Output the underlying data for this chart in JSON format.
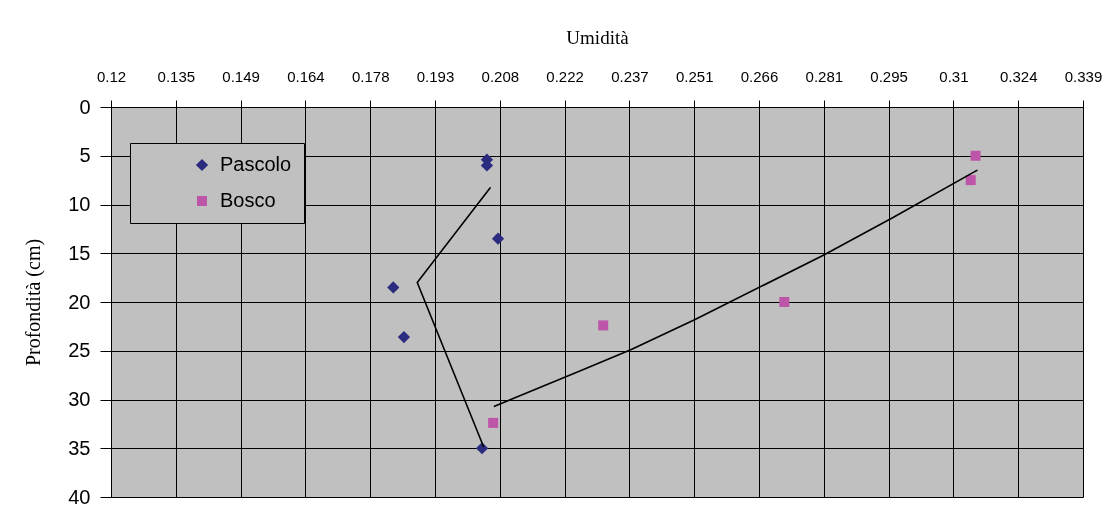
{
  "chart_data": {
    "type": "scatter",
    "xlabel": "Umidità",
    "ylabel": "Profondità (cm)",
    "xlim": [
      0.12,
      0.339
    ],
    "xticks": [
      0.12,
      {
        "value": 0.1346,
        "label": "0.135"
      },
      {
        "value": 0.1492,
        "label": "0.149"
      },
      {
        "value": 0.1638,
        "label": "0.164"
      },
      {
        "value": 0.1784,
        "label": "0.178"
      },
      0.193,
      {
        "value": 0.2076,
        "label": "0.208"
      },
      {
        "value": 0.2222,
        "label": "0.222"
      },
      {
        "value": 0.2368,
        "label": "0.237"
      },
      {
        "value": 0.2514,
        "label": "0.251"
      },
      0.266,
      {
        "value": 0.2806,
        "label": "0.281"
      },
      {
        "value": 0.2952,
        "label": "0.295"
      },
      {
        "value": 0.3098,
        "label": "0.31"
      },
      {
        "value": 0.3244,
        "label": "0.324"
      },
      0.339
    ],
    "ylim": [
      40,
      0
    ],
    "yticks": [
      0,
      5,
      10,
      15,
      20,
      25,
      30,
      35,
      40
    ],
    "grid": true,
    "legend": "top left",
    "series": [
      {
        "name": "Pascolo",
        "color": "#2b2b7f",
        "marker": "diamond",
        "x": [
          0.2047,
          0.2047,
          0.2072,
          0.1836,
          0.186,
          0.2036
        ],
        "values": [
          5.4,
          6,
          13.5,
          18.5,
          23.6,
          35
        ]
      },
      {
        "name": "Bosco",
        "color": "#bd55a8",
        "marker": "square",
        "x": [
          0.3148,
          0.3137,
          0.2717,
          0.2309,
          0.2061
        ],
        "values": [
          5,
          7.5,
          20,
          22.4,
          32.4
        ]
      },
      {
        "type": "line",
        "color": "#000000",
        "x": [
          0.2054,
          0.189,
          0.2039
        ],
        "values": [
          8.3,
          18,
          34.8
        ]
      },
      {
        "type": "line",
        "color": "#000000",
        "x": [
          0.2064,
          0.2255,
          0.2371,
          0.2516,
          0.2805,
          0.2963,
          0.3151
        ],
        "values": [
          30.7,
          27.1,
          24.9,
          21.8,
          15.2,
          11.3,
          6.5
        ]
      }
    ]
  }
}
